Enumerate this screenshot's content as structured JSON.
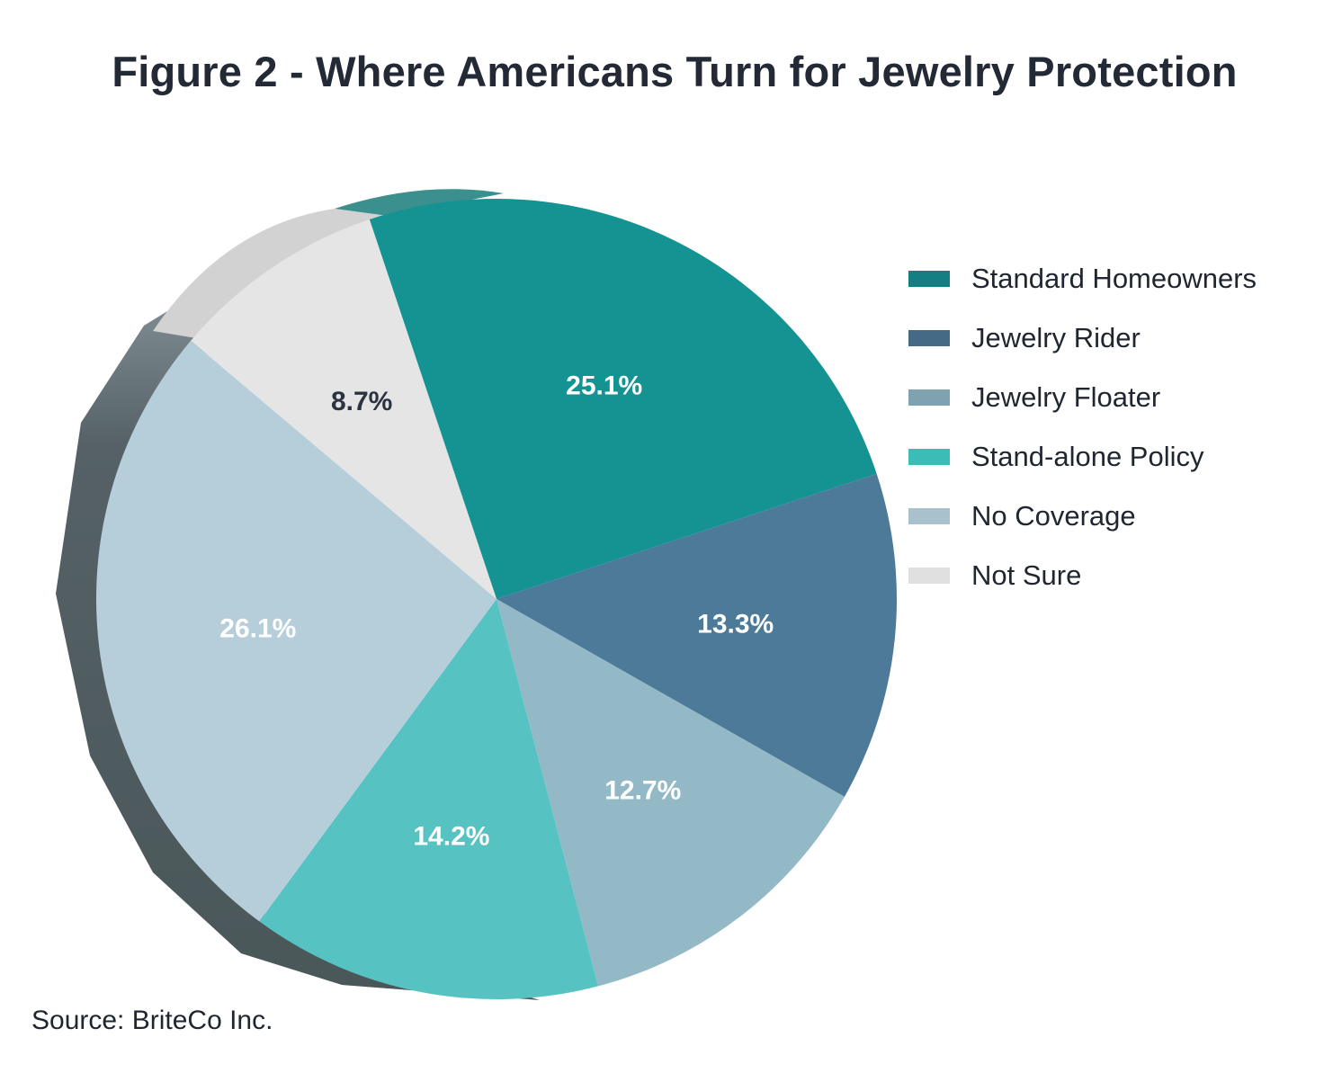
{
  "title": "Figure 2 - Where Americans Turn for Jewelry Protection",
  "source": "Source: BriteCo Inc.",
  "chart_data": {
    "type": "pie",
    "title": "Figure 2 - Where Americans Turn for Jewelry Protection",
    "legend_position": "right",
    "slices": [
      {
        "label": "Standard Homeowners",
        "value": 25.1,
        "value_label": "25.1%",
        "color": "#149392",
        "label_color": "#ffffff"
      },
      {
        "label": "Jewelry Rider",
        "value": 13.3,
        "value_label": "13.3%",
        "color": "#4c7a98",
        "label_color": "#ffffff"
      },
      {
        "label": "Jewelry Floater",
        "value": 12.7,
        "value_label": "12.7%",
        "color": "#93b9c7",
        "label_color": "#ffffff"
      },
      {
        "label": "Stand-alone Policy",
        "value": 14.2,
        "value_label": "14.2%",
        "color": "#56c3c2",
        "label_color": "#ffffff"
      },
      {
        "label": "No Coverage",
        "value": 26.1,
        "value_label": "26.1%",
        "color": "#b6ceda",
        "label_color": "#ffffff"
      },
      {
        "label": "Not Sure",
        "value": 8.7,
        "value_label": "8.7%",
        "color": "#e5e5e5",
        "label_color": "#2b3240"
      }
    ],
    "legend_colors": [
      "#147f82",
      "#456a85",
      "#7fa2b1",
      "#3bbcb7",
      "#a9c1cc",
      "#e0e0e0"
    ]
  }
}
